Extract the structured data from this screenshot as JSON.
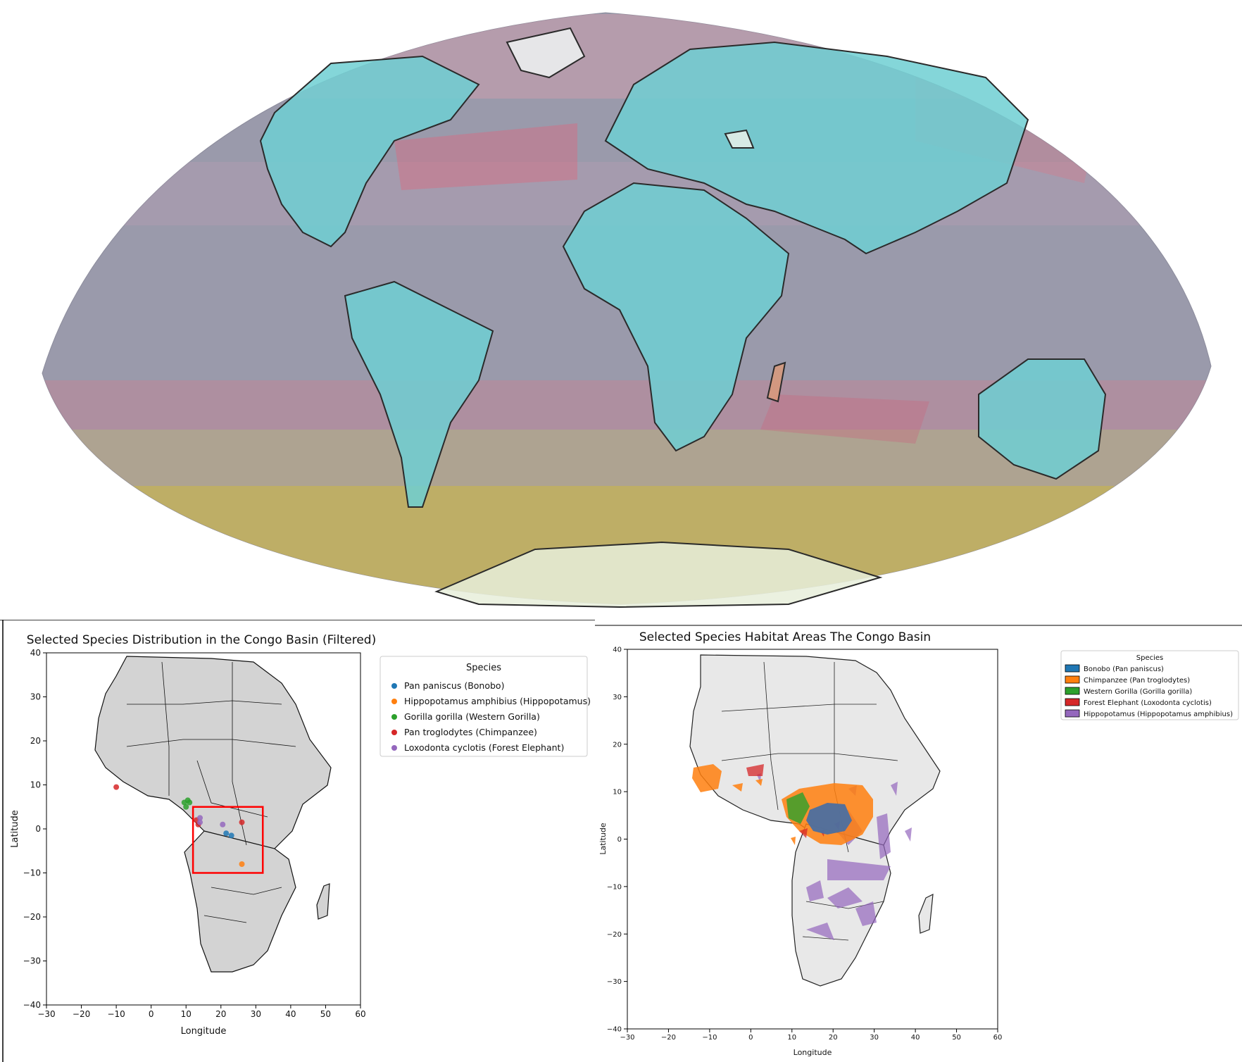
{
  "panelA": {
    "title": "Selected Species Distribution in the Congo Basin (Filtered)",
    "xlabel": "Longitude",
    "ylabel": "Latitude",
    "xticks": [
      "−30",
      "−20",
      "−10",
      "0",
      "10",
      "20",
      "30",
      "40",
      "50",
      "60"
    ],
    "yticks": [
      "40",
      "30",
      "20",
      "10",
      "0",
      "−10",
      "−20",
      "−30",
      "−40"
    ],
    "legend_title": "Species",
    "legend": [
      {
        "label": "Pan paniscus (Bonobo)",
        "color": "#1f77b4"
      },
      {
        "label": "Hippopotamus amphibius (Hippopotamus)",
        "color": "#ff7f0e"
      },
      {
        "label": "Gorilla gorilla (Western Gorilla)",
        "color": "#2ca02c"
      },
      {
        "label": "Pan troglodytes (Chimpanzee)",
        "color": "#d62728"
      },
      {
        "label": "Loxodonta cyclotis (Forest Elephant)",
        "color": "#9467bd"
      }
    ]
  },
  "panelB": {
    "title": "Selected Species Habitat Areas The Congo Basin",
    "xlabel": "Longitude",
    "ylabel": "Latitude",
    "xticks": [
      "−30",
      "−20",
      "−10",
      "0",
      "10",
      "20",
      "30",
      "40",
      "50",
      "60"
    ],
    "yticks": [
      "40",
      "30",
      "20",
      "10",
      "0",
      "−10",
      "−20",
      "−30",
      "−40"
    ],
    "legend_title": "Species",
    "legend": [
      {
        "label": "Bonobo (Pan paniscus)",
        "color": "#1f77b4"
      },
      {
        "label": "Chimpanzee (Pan troglodytes)",
        "color": "#ff7f0e"
      },
      {
        "label": "Western Gorilla (Gorilla gorilla)",
        "color": "#2ca02c"
      },
      {
        "label": "Forest Elephant (Loxodonta cyclotis)",
        "color": "#d62728"
      },
      {
        "label": "Hippopotamus (Hippopotamus amphibius)",
        "color": "#9467bd"
      }
    ]
  },
  "chart_data": [
    {
      "type": "scatter",
      "title": "Selected Species Distribution in the Congo Basin (Filtered)",
      "xlabel": "Longitude",
      "ylabel": "Latitude",
      "xlim": [
        -30,
        60
      ],
      "ylim": [
        -40,
        40
      ],
      "legend_position": "outside right, top",
      "highlight_box": {
        "lon": [
          12,
          32
        ],
        "lat": [
          -10,
          5
        ],
        "color": "#ff0000"
      },
      "series": [
        {
          "name": "Pan paniscus (Bonobo)",
          "points": [
            [
              21.5,
              -1
            ],
            [
              23,
              -1.5
            ]
          ]
        },
        {
          "name": "Hippopotamus amphibius (Hippopotamus)",
          "points": [
            [
              26,
              -8
            ]
          ]
        },
        {
          "name": "Gorilla gorilla (Western Gorilla)",
          "points": [
            [
              9.5,
              6
            ],
            [
              10,
              5
            ],
            [
              10.5,
              6.5
            ],
            [
              11,
              6
            ]
          ]
        },
        {
          "name": "Pan troglodytes (Chimpanzee)",
          "points": [
            [
              -10,
              9.5
            ],
            [
              13.5,
              1
            ],
            [
              26,
              1.5
            ],
            [
              13,
              2
            ]
          ]
        },
        {
          "name": "Loxodonta cyclotis (Forest Elephant)",
          "points": [
            [
              14,
              1.5
            ],
            [
              14,
              2.5
            ],
            [
              20.5,
              1
            ]
          ]
        }
      ]
    },
    {
      "type": "area",
      "title": "Selected Species Habitat Areas The Congo Basin",
      "xlabel": "Longitude",
      "ylabel": "Latitude",
      "xlim": [
        -30,
        60
      ],
      "ylim": [
        -40,
        40
      ],
      "legend_position": "outside right, top",
      "series": [
        {
          "name": "Bonobo (Pan paniscus)"
        },
        {
          "name": "Chimpanzee (Pan troglodytes)"
        },
        {
          "name": "Western Gorilla (Gorilla gorilla)"
        },
        {
          "name": "Forest Elephant (Loxodonta cyclotis)"
        },
        {
          "name": "Hippopotamus (Hippopotamus amphibius)"
        }
      ]
    }
  ]
}
